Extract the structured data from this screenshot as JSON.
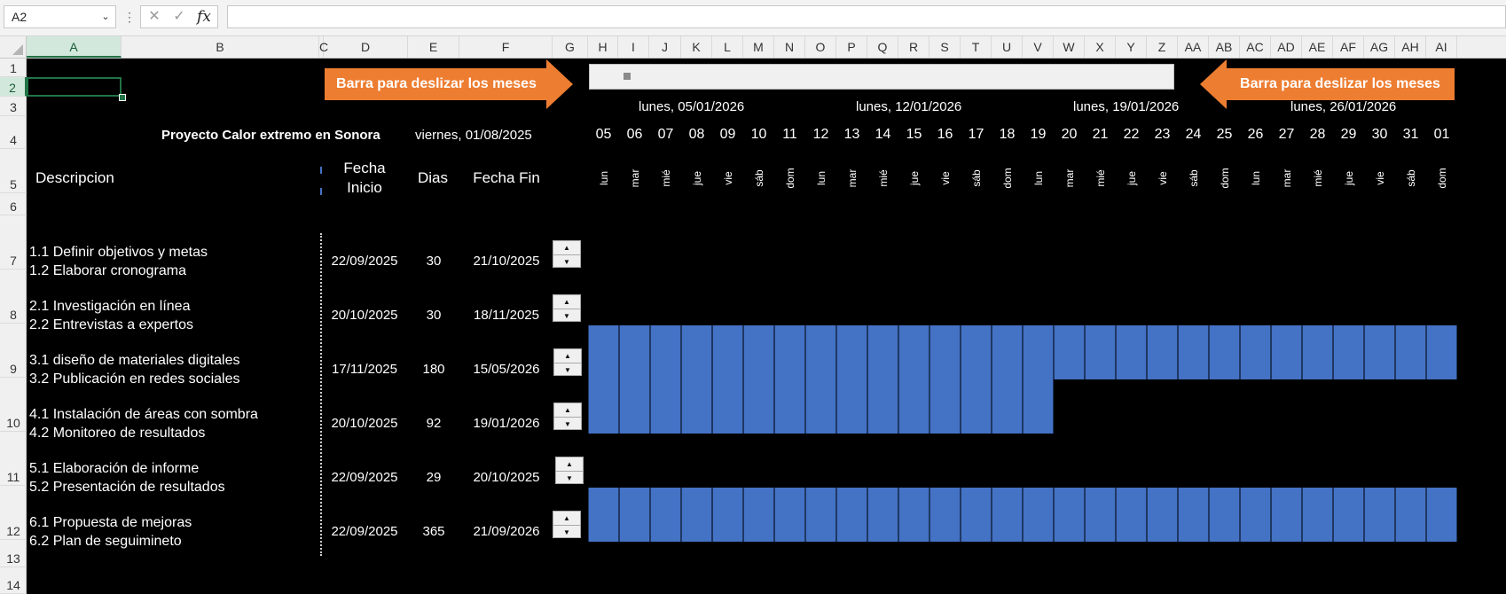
{
  "formula_bar": {
    "name_box": "A2",
    "formula": ""
  },
  "column_headers": [
    "A",
    "B",
    "C",
    "D",
    "E",
    "F",
    "G",
    "H",
    "I",
    "J",
    "K",
    "L",
    "M",
    "N",
    "O",
    "P",
    "Q",
    "R",
    "S",
    "T",
    "U",
    "V",
    "W",
    "X",
    "Y",
    "Z",
    "AA",
    "AB",
    "AC",
    "AD",
    "AE",
    "AF",
    "AG",
    "AH",
    "AI"
  ],
  "row_headers": [
    "1",
    "2",
    "3",
    "4",
    "5",
    "6",
    "7",
    "8",
    "9",
    "10",
    "11",
    "12",
    "13",
    "14"
  ],
  "sheet": {
    "scroll_label_left": "Barra para deslizar los meses",
    "scroll_label_right": "Barra para deslizar los meses",
    "project_title": "Proyecto Calor extremo en Sonora",
    "project_date": "viernes, 01/08/2025",
    "header_description": "Descripcion",
    "header_start": "Fecha Inicio",
    "header_days": "Dias",
    "header_end": "Fecha Fin",
    "week_labels": [
      "lunes, 05/01/2026",
      "lunes, 12/01/2026",
      "lunes, 19/01/2026",
      "lunes, 26/01/2026"
    ],
    "day_numbers": [
      "05",
      "06",
      "07",
      "08",
      "09",
      "10",
      "11",
      "12",
      "13",
      "14",
      "15",
      "16",
      "17",
      "18",
      "19",
      "20",
      "21",
      "22",
      "23",
      "24",
      "25",
      "26",
      "27",
      "28",
      "29",
      "30",
      "31",
      "01"
    ],
    "day_names": [
      "lun",
      "mar",
      "mié",
      "jue",
      "vie",
      "sáb",
      "dom",
      "lun",
      "mar",
      "mié",
      "jue",
      "vie",
      "sáb",
      "dom",
      "lun",
      "mar",
      "mié",
      "jue",
      "vie",
      "sáb",
      "dom",
      "lun",
      "mar",
      "mié",
      "jue",
      "vie",
      "sáb",
      "dom"
    ],
    "tasks": [
      {
        "line1": "1.1 Definir objetivos y metas",
        "line2": "1.2 Elaborar cronograma",
        "start": "22/09/2025",
        "days": "30",
        "end": "21/10/2025",
        "bar_days": 0
      },
      {
        "line1": "2.1 Investigación en línea",
        "line2": "2.2 Entrevistas a expertos",
        "start": "20/10/2025",
        "days": "30",
        "end": "18/11/2025",
        "bar_days": 0
      },
      {
        "line1": "3.1 diseño de materiales digitales",
        "line2": "3.2 Publicación en redes sociales",
        "start": "17/11/2025",
        "days": "180",
        "end": "15/05/2026",
        "bar_days": 28
      },
      {
        "line1": "4.1 Instalación de áreas con sombra",
        "line2": "4.2 Monitoreo de resultados",
        "start": "20/10/2025",
        "days": "92",
        "end": "19/01/2026",
        "bar_days": 15
      },
      {
        "line1": "5.1 Elaboración de informe",
        "line2": "5.2 Presentación de resultados",
        "start": "22/09/2025",
        "days": "29",
        "end": "20/10/2025",
        "bar_days": 0
      },
      {
        "line1": "6.1 Propuesta de mejoras",
        "line2": "6.2 Plan de seguimineto",
        "start": "22/09/2025",
        "days": "365",
        "end": "21/09/2026",
        "bar_days": 28
      }
    ]
  },
  "colors": {
    "gantt_bar": "#4472c4",
    "arrow": "#ed7d31",
    "selection": "#217346"
  },
  "icons": {
    "cancel": "close-icon",
    "enter": "check-icon",
    "function": "fx-icon"
  }
}
